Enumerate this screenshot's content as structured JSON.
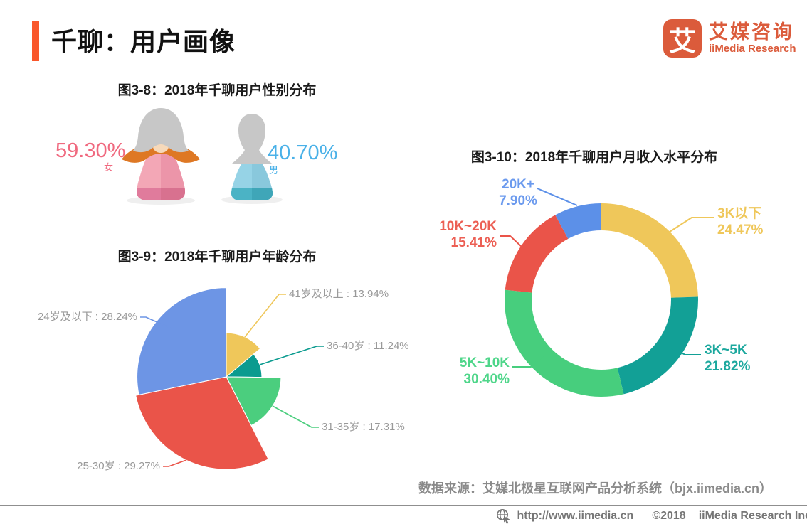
{
  "page": {
    "title": "千聊：用户画像",
    "accent_color": "#F9572B"
  },
  "logo": {
    "mark": "艾",
    "name_cn": "艾媒咨询",
    "name_en": "iiMedia Research",
    "color": "#DB5B3B"
  },
  "chart_data": [
    {
      "id": "gender",
      "type": "pictorial",
      "title": "图3-8：2018年千聊用户性别分布",
      "categories": [
        "女",
        "男"
      ],
      "values": [
        59.3,
        40.7
      ],
      "value_labels": [
        "59.30%",
        "40.70%"
      ],
      "colors": [
        "#F0697F",
        "#4AB1E8"
      ],
      "unit": "%"
    },
    {
      "id": "age",
      "type": "pie",
      "variant": "rose",
      "title": "图3-9：2018年千聊用户年龄分布",
      "labels": [
        "41岁及以上",
        "36-40岁",
        "31-35岁",
        "25-30岁",
        "24岁及以下"
      ],
      "values": [
        13.94,
        11.24,
        17.31,
        29.27,
        28.24
      ],
      "display_labels": [
        "41岁及以上 : 13.94%",
        "36-40岁 : 11.24%",
        "31-35岁 : 17.31%",
        "25-30岁 : 29.27%",
        "24岁及以下 : 28.24%"
      ],
      "colors": [
        "#EFC75A",
        "#0B9B8F",
        "#4BCE7E",
        "#EA5449",
        "#6D95E5"
      ],
      "label_color": "#999999",
      "legend": "none"
    },
    {
      "id": "income",
      "type": "pie",
      "variant": "donut",
      "title": "图3-10：2018年千聊用户月收入水平分布",
      "labels": [
        "3K以下",
        "3K~5K",
        "5K~10K",
        "10K~20K",
        "20K+"
      ],
      "values": [
        24.47,
        21.82,
        30.4,
        15.41,
        7.9
      ],
      "display_values": [
        "24.47%",
        "21.82%",
        "30.40%",
        "15.41%",
        "7.90%"
      ],
      "colors": [
        "#EFC75A",
        "#12A096",
        "#47CE7D",
        "#EA5449",
        "#5C90E8"
      ],
      "label_colors": [
        "#EFC75A",
        "#1CA89E",
        "#4FD68A",
        "#EC5F54",
        "#6B9AEE"
      ],
      "legend": "none"
    }
  ],
  "source_note": "数据来源：艾媒北极星互联网产品分析系统（bjx.iimedia.cn）",
  "footer": {
    "url": "http://www.iimedia.cn",
    "copyright": "©2018",
    "company": "iiMedia Research Inc"
  }
}
